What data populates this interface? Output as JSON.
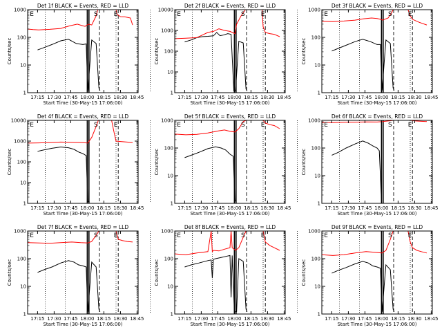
{
  "chart_data": [
    {
      "type": "line",
      "title": "Det 1f BLACK = Events, RED = LLD",
      "xlabel": "Start Time (30-May-15 17:06:00)",
      "ylabel": "Counts/sec",
      "ylim": [
        1,
        1000
      ],
      "y_scale": "log",
      "x_ticks": [
        "17:15",
        "17:30",
        "17:45",
        "18:00",
        "18:15",
        "18:30",
        "18:45"
      ],
      "y_ticks": [
        "1",
        "10",
        "100",
        "1000"
      ],
      "annotations": [
        "E",
        "S",
        "E"
      ],
      "flag_lines_min": [
        80,
        99,
        111
      ],
      "solid_lines_min": [
        54,
        55.5
      ],
      "dashed_lines_min": [
        65,
        82
      ],
      "series": [
        {
          "name": "Events",
          "color": "#000000",
          "x_min": [
            9,
            15,
            22,
            30,
            37,
            44,
            50,
            53,
            54.5,
            58,
            62,
            64.5,
            65.5
          ],
          "y": [
            35,
            43,
            55,
            75,
            85,
            60,
            55,
            58,
            1.2,
            80,
            60,
            1.5,
            1.2
          ]
        },
        {
          "name": "LLD",
          "color": "#ff0000",
          "x_min": [
            0,
            5,
            10,
            20,
            30,
            38,
            45,
            50,
            52,
            55,
            58,
            62,
            63.5,
            64.5,
            67,
            72,
            75,
            80,
            81,
            84,
            88,
            93,
            95
          ],
          "y": [
            200,
            190,
            185,
            195,
            210,
            260,
            300,
            260,
            250,
            300,
            280,
            600,
            1000,
            1000,
            1000,
            1000,
            1000,
            1000,
            680,
            560,
            550,
            500,
            280
          ]
        }
      ]
    },
    {
      "type": "line",
      "title": "Det 2f BLACK = Events, RED = LLD",
      "xlabel": "Start Time (30-May-15 17:06:00)",
      "ylabel": "Counts/sec",
      "ylim": [
        1,
        10000
      ],
      "y_scale": "log",
      "x_ticks": [
        "17:15",
        "17:30",
        "17:45",
        "18:00",
        "18:15",
        "18:30",
        "18:45"
      ],
      "y_ticks": [
        "1",
        "10",
        "100",
        "1000",
        "10000"
      ],
      "annotations": [
        "E",
        "S",
        "E"
      ],
      "flag_lines_min": [
        80,
        99,
        111
      ],
      "solid_lines_min": [
        54,
        55.5
      ],
      "dashed_lines_min": [
        65,
        82
      ],
      "series": [
        {
          "name": "Events",
          "color": "#000000",
          "x_min": [
            9,
            15,
            20,
            25,
            30,
            35,
            38,
            41,
            44,
            48,
            51,
            53.5,
            55,
            58,
            62,
            64.5,
            65.5
          ],
          "y": [
            280,
            350,
            450,
            500,
            520,
            550,
            800,
            560,
            600,
            700,
            650,
            1.2,
            1.2,
            300,
            250,
            1.5,
            1.2
          ]
        },
        {
          "name": "LLD",
          "color": "#ff0000",
          "x_min": [
            0,
            10,
            20,
            30,
            35,
            40,
            45,
            50,
            54.5,
            56,
            60,
            64,
            66,
            72,
            79,
            80,
            82,
            86,
            90,
            95
          ],
          "y": [
            400,
            420,
            450,
            800,
            900,
            1200,
            1000,
            900,
            700,
            2000,
            5000,
            10000,
            10000,
            10000,
            10000,
            1500,
            800,
            700,
            650,
            500
          ]
        }
      ]
    },
    {
      "type": "line",
      "title": "Det 3f BLACK = Events, RED = LLD",
      "xlabel": "Start Time (30-May-15 17:06:00)",
      "ylabel": "Counts/sec",
      "ylim": [
        1,
        1000
      ],
      "y_scale": "log",
      "x_ticks": [
        "17:15",
        "17:30",
        "17:45",
        "18:00",
        "18:15",
        "18:30",
        "18:45"
      ],
      "y_ticks": [
        "1",
        "10",
        "100",
        "1000"
      ],
      "annotations": [
        "E",
        "S",
        "E"
      ],
      "flag_lines_min": [
        80,
        99,
        111
      ],
      "solid_lines_min": [
        54,
        55.5
      ],
      "dashed_lines_min": [
        65,
        82
      ],
      "series": [
        {
          "name": "Events",
          "color": "#000000",
          "x_min": [
            9,
            15,
            22,
            30,
            37,
            44,
            50,
            53,
            54.5,
            58,
            62,
            64.5,
            65.5
          ],
          "y": [
            32,
            40,
            52,
            70,
            85,
            70,
            55,
            55,
            1.2,
            80,
            60,
            1.5,
            1.2
          ]
        },
        {
          "name": "LLD",
          "color": "#ff0000",
          "x_min": [
            0,
            10,
            20,
            30,
            38,
            45,
            50,
            53,
            55,
            60,
            63,
            64.5,
            72,
            78,
            80,
            82,
            88,
            95
          ],
          "y": [
            380,
            370,
            390,
            420,
            470,
            500,
            480,
            450,
            420,
            500,
            750,
            1000,
            1000,
            1000,
            600,
            450,
            350,
            280
          ]
        }
      ]
    },
    {
      "type": "line",
      "title": "Det 4f BLACK = Events, RED = LLD",
      "xlabel": "Start Time (30-May-15 17:06:00)",
      "ylabel": "Counts/sec",
      "ylim": [
        1,
        10000
      ],
      "y_scale": "log",
      "x_ticks": [
        "17:15",
        "17:30",
        "17:45",
        "18:00",
        "18:15",
        "18:30",
        "18:45"
      ],
      "y_ticks": [
        "1",
        "10",
        "100",
        "1000",
        "10000"
      ],
      "annotations": [
        "E",
        "S",
        "E"
      ],
      "flag_lines_min": [
        80,
        99,
        111
      ],
      "solid_lines_min": [
        54,
        55.5
      ],
      "dashed_lines_min": [
        65,
        82
      ],
      "series": [
        {
          "name": "Events",
          "color": "#000000",
          "x_min": [
            9,
            15,
            22,
            30,
            37,
            42,
            46,
            50,
            53,
            54.5,
            56
          ],
          "y": [
            320,
            380,
            450,
            520,
            480,
            400,
            300,
            250,
            200,
            1.2,
            1.2
          ]
        },
        {
          "name": "LLD",
          "color": "#ff0000",
          "x_min": [
            0,
            10,
            20,
            30,
            40,
            50,
            54.5,
            58,
            62,
            64,
            66,
            72,
            76,
            78,
            80,
            85,
            90,
            95
          ],
          "y": [
            800,
            820,
            850,
            900,
            880,
            850,
            800,
            1500,
            5000,
            10000,
            10000,
            10000,
            10000,
            3000,
            1000,
            950,
            900,
            850
          ]
        }
      ]
    },
    {
      "type": "line",
      "title": "Det 5f BLACK = Events, RED = LLD",
      "xlabel": "Start Time (30-May-15 17:06:00)",
      "ylabel": "Counts/sec",
      "ylim": [
        1,
        1000
      ],
      "y_scale": "log",
      "x_ticks": [
        "17:15",
        "17:30",
        "17:45",
        "18:00",
        "18:15",
        "18:30",
        "18:45"
      ],
      "y_ticks": [
        "1",
        "10",
        "100",
        "1000"
      ],
      "annotations": [
        "E",
        "S",
        "E"
      ],
      "flag_lines_min": [
        80,
        99,
        111
      ],
      "solid_lines_min": [
        54,
        55.5
      ],
      "dashed_lines_min": [
        65,
        82
      ],
      "series": [
        {
          "name": "Events",
          "color": "#000000",
          "x_min": [
            9,
            15,
            22,
            30,
            37,
            42,
            46,
            50,
            53,
            54.5,
            56
          ],
          "y": [
            45,
            55,
            70,
            95,
            110,
            100,
            85,
            60,
            50,
            1.2,
            1.2
          ]
        },
        {
          "name": "LLD",
          "color": "#ff0000",
          "x_min": [
            0,
            10,
            20,
            30,
            40,
            45,
            50,
            54.5,
            58,
            62,
            64.5,
            72,
            80,
            82,
            86,
            90,
            95
          ],
          "y": [
            320,
            300,
            310,
            350,
            420,
            450,
            400,
            380,
            500,
            900,
            1000,
            1000,
            1000,
            800,
            700,
            650,
            500
          ]
        }
      ]
    },
    {
      "type": "line",
      "title": "Det 6f BLACK = Events, RED = LLD",
      "xlabel": "Start Time (30-May-15 17:06:00)",
      "ylabel": "Counts/sec",
      "ylim": [
        1,
        1000
      ],
      "y_scale": "log",
      "x_ticks": [
        "17:15",
        "17:30",
        "17:45",
        "18:00",
        "18:15",
        "18:30",
        "18:45"
      ],
      "y_ticks": [
        "1",
        "10",
        "100",
        "1000"
      ],
      "annotations": [
        "E",
        "S",
        "E"
      ],
      "flag_lines_min": [
        80,
        99,
        111
      ],
      "solid_lines_min": [
        54,
        55.5
      ],
      "dashed_lines_min": [
        65,
        82
      ],
      "series": [
        {
          "name": "Events",
          "color": "#000000",
          "x_min": [
            9,
            15,
            22,
            30,
            37,
            42,
            46,
            50,
            52,
            54
          ],
          "y": [
            55,
            70,
            100,
            140,
            180,
            150,
            120,
            100,
            80,
            1.2
          ]
        },
        {
          "name": "LLD",
          "color": "#ff0000",
          "x_min": [
            0,
            10,
            20,
            30,
            40,
            50,
            55,
            60,
            65,
            72,
            80,
            85,
            90,
            95
          ],
          "y": [
            850,
            830,
            850,
            860,
            880,
            870,
            900,
            950,
            1000,
            1000,
            1000,
            950,
            920,
            900
          ]
        }
      ]
    },
    {
      "type": "line",
      "title": "Det 7f BLACK = Events, RED = LLD",
      "xlabel": "Start Time (30-May-15 17:06:00)",
      "ylabel": "Counts/sec",
      "ylim": [
        1,
        1000
      ],
      "y_scale": "log",
      "x_ticks": [
        "17:15",
        "17:30",
        "17:45",
        "18:00",
        "18:15",
        "18:30",
        "18:45"
      ],
      "y_ticks": [
        "1",
        "10",
        "100",
        "1000"
      ],
      "annotations": [
        "E",
        "S",
        "E"
      ],
      "flag_lines_min": [
        80,
        99,
        111
      ],
      "solid_lines_min": [
        54,
        55.5
      ],
      "dashed_lines_min": [
        65,
        82
      ],
      "series": [
        {
          "name": "Events",
          "color": "#000000",
          "x_min": [
            9,
            15,
            22,
            30,
            37,
            42,
            46,
            50,
            53,
            54.5,
            58,
            62,
            64.5,
            65.5
          ],
          "y": [
            32,
            40,
            50,
            70,
            85,
            75,
            60,
            55,
            50,
            1.2,
            75,
            50,
            1.5,
            1.2
          ]
        },
        {
          "name": "LLD",
          "color": "#ff0000",
          "x_min": [
            0,
            10,
            20,
            30,
            40,
            48,
            54.5,
            58,
            62,
            64.5,
            72,
            80,
            82,
            86,
            90,
            95
          ],
          "y": [
            380,
            370,
            360,
            380,
            400,
            380,
            370,
            420,
            700,
            1000,
            1000,
            1000,
            500,
            450,
            420,
            400
          ]
        }
      ]
    },
    {
      "type": "line",
      "title": "Det 8f BLACK = Events, RED = LLD",
      "xlabel": "Start Time (30-May-15 17:06:00)",
      "ylabel": "Counts/sec",
      "ylim": [
        1,
        1000
      ],
      "y_scale": "log",
      "x_ticks": [
        "17:15",
        "17:30",
        "17:45",
        "18:00",
        "18:15",
        "18:30",
        "18:45"
      ],
      "y_ticks": [
        "1",
        "10",
        "100",
        "1000"
      ],
      "annotations": [
        "E",
        "S",
        "E"
      ],
      "flag_lines_min": [
        80,
        99,
        111
      ],
      "solid_lines_min": [
        54,
        55.5
      ],
      "dashed_lines_min": [
        65,
        82
      ],
      "series": [
        {
          "name": "Events",
          "color": "#000000",
          "x_min": [
            9,
            15,
            22,
            30,
            33,
            34,
            35,
            37,
            42,
            46,
            50,
            51,
            52,
            54,
            56,
            58,
            62,
            64.5,
            65.5
          ],
          "y": [
            50,
            60,
            70,
            85,
            90,
            20,
            95,
            100,
            110,
            120,
            130,
            4,
            130,
            1.2,
            1.2,
            100,
            80,
            1.5,
            1.2
          ]
        },
        {
          "name": "LLD",
          "color": "#ff0000",
          "x_min": [
            0,
            10,
            20,
            30,
            33,
            34,
            35,
            40,
            45,
            50,
            51,
            52,
            55,
            58,
            62,
            64.5,
            72,
            80,
            82,
            86,
            90,
            95
          ],
          "y": [
            150,
            140,
            160,
            180,
            1000,
            180,
            200,
            190,
            220,
            250,
            1000,
            250,
            200,
            250,
            600,
            1000,
            1000,
            1000,
            400,
            300,
            250,
            200
          ]
        }
      ]
    },
    {
      "type": "line",
      "title": "Det 9f BLACK = Events, RED = LLD",
      "xlabel": "Start Time (30-May-15 17:06:00)",
      "ylabel": "Counts/sec",
      "ylim": [
        1,
        1000
      ],
      "y_scale": "log",
      "x_ticks": [
        "17:15",
        "17:30",
        "17:45",
        "18:00",
        "18:15",
        "18:30",
        "18:45"
      ],
      "y_ticks": [
        "1",
        "10",
        "100",
        "1000"
      ],
      "annotations": [
        "E",
        "S",
        "E"
      ],
      "flag_lines_min": [
        80,
        99,
        111
      ],
      "solid_lines_min": [
        54,
        55.5
      ],
      "dashed_lines_min": [
        65,
        82
      ],
      "series": [
        {
          "name": "Events",
          "color": "#000000",
          "x_min": [
            9,
            15,
            22,
            30,
            37,
            42,
            46,
            50,
            53,
            54.5,
            58,
            62,
            64.5,
            65.5
          ],
          "y": [
            30,
            38,
            48,
            65,
            80,
            70,
            55,
            50,
            45,
            1.2,
            60,
            40,
            1.5,
            1.2
          ]
        },
        {
          "name": "LLD",
          "color": "#ff0000",
          "x_min": [
            0,
            10,
            20,
            30,
            40,
            48,
            54.5,
            58,
            62,
            64.5,
            72,
            78,
            80,
            82,
            86,
            90,
            95
          ],
          "y": [
            140,
            130,
            140,
            160,
            180,
            170,
            160,
            200,
            500,
            1000,
            1000,
            1000,
            400,
            250,
            200,
            180,
            160
          ]
        }
      ]
    }
  ]
}
